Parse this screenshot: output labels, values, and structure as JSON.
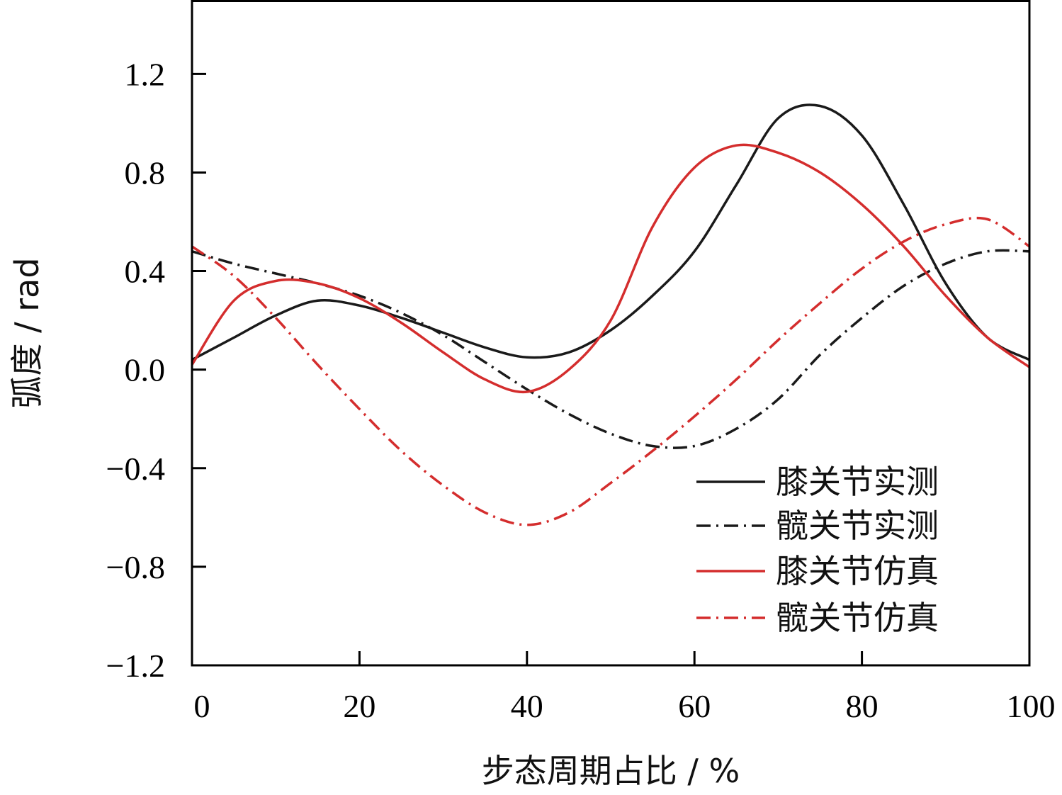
{
  "chart_data": {
    "type": "line",
    "title": "",
    "xlabel": "步态周期占比 / %",
    "ylabel": "弧度 / rad",
    "xlim": [
      0,
      100
    ],
    "ylim": [
      -1.2,
      1.5
    ],
    "xticks": [
      0,
      20,
      40,
      60,
      80,
      100
    ],
    "xtick_labels": [
      "0",
      "20",
      "40",
      "60",
      "80",
      "100"
    ],
    "yticks": [
      -1.2,
      -0.8,
      -0.4,
      0.0,
      0.4,
      0.8,
      1.2
    ],
    "ytick_labels": [
      "−1.2",
      "−0.8",
      "−0.4",
      "0.0",
      "0.4",
      "0.8",
      "1.2"
    ],
    "grid": false,
    "legend_position": "bottom-right",
    "x": [
      0,
      5,
      10,
      15,
      20,
      25,
      30,
      35,
      40,
      45,
      50,
      55,
      60,
      65,
      70,
      75,
      80,
      85,
      90,
      95,
      100
    ],
    "series": [
      {
        "name": "膝关节实测",
        "color": "#1a1a1a",
        "dash": "solid",
        "values": [
          0.04,
          0.13,
          0.22,
          0.28,
          0.26,
          0.21,
          0.15,
          0.09,
          0.05,
          0.07,
          0.16,
          0.3,
          0.48,
          0.75,
          1.02,
          1.07,
          0.95,
          0.67,
          0.35,
          0.13,
          0.04
        ]
      },
      {
        "name": "髋关节实测",
        "color": "#1a1a1a",
        "dash": "dashdot",
        "values": [
          0.48,
          0.43,
          0.39,
          0.35,
          0.3,
          0.23,
          0.14,
          0.03,
          -0.08,
          -0.18,
          -0.26,
          -0.31,
          -0.31,
          -0.24,
          -0.12,
          0.06,
          0.21,
          0.34,
          0.43,
          0.48,
          0.48
        ]
      },
      {
        "name": "膝关节仿真",
        "color": "#d42d2d",
        "dash": "solid",
        "values": [
          0.02,
          0.28,
          0.36,
          0.35,
          0.29,
          0.19,
          0.07,
          -0.04,
          -0.09,
          0.0,
          0.2,
          0.58,
          0.82,
          0.91,
          0.88,
          0.8,
          0.67,
          0.5,
          0.3,
          0.13,
          0.01
        ]
      },
      {
        "name": "髋关节仿真",
        "color": "#d42d2d",
        "dash": "dashdot",
        "values": [
          0.5,
          0.38,
          0.21,
          0.02,
          -0.16,
          -0.33,
          -0.47,
          -0.58,
          -0.63,
          -0.58,
          -0.46,
          -0.33,
          -0.19,
          -0.04,
          0.12,
          0.27,
          0.41,
          0.52,
          0.59,
          0.61,
          0.5
        ]
      }
    ]
  }
}
